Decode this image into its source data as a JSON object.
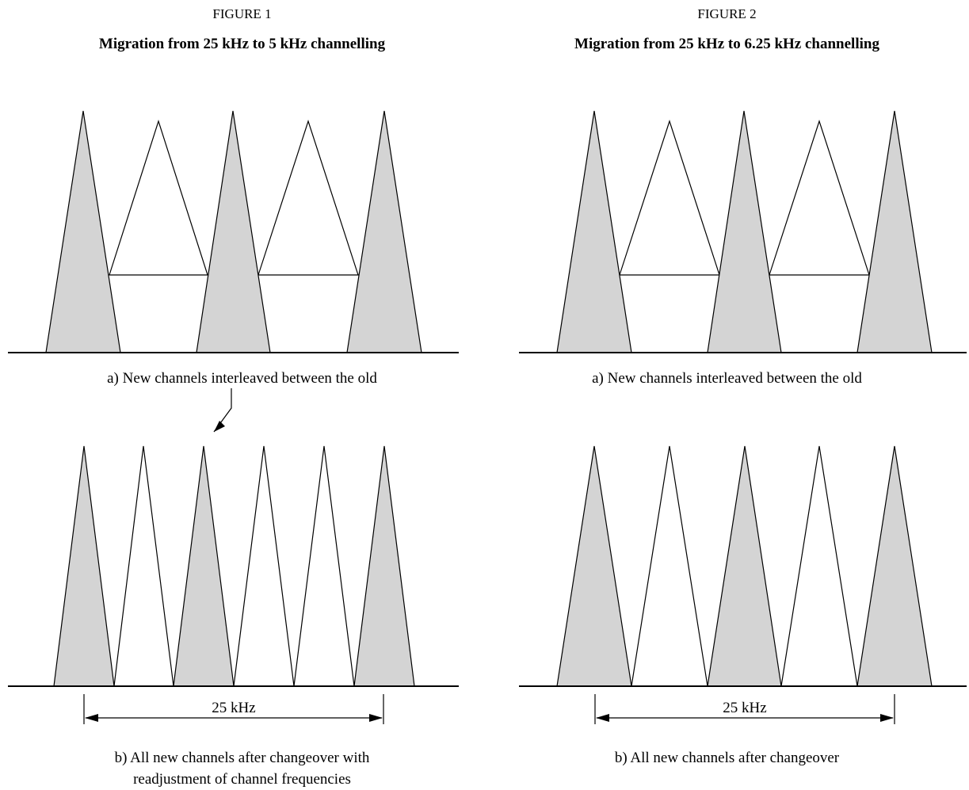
{
  "colors": {
    "shaded": "#d4d4d4",
    "line": "#000000",
    "background": "#ffffff"
  },
  "figures": [
    {
      "number": "FIGURE 1",
      "title": "Migration from 25 kHz to 5 kHz channelling",
      "caption_a": "a)  New channels interleaved between the old",
      "caption_b_line1": "b)  All new channels after changeover with",
      "caption_b_line2": "readjustment of channel frequencies",
      "dimension_label": "25 kHz",
      "has_arrow_annotation": true
    },
    {
      "number": "FIGURE 2",
      "title": "Migration from 25 kHz to 6.25 kHz channelling",
      "caption_a": "a)  New channels interleaved between the old",
      "caption_b_line1": "b)  All new channels after changeover",
      "caption_b_line2": "",
      "dimension_label": "25 kHz",
      "has_arrow_annotation": false
    }
  ]
}
